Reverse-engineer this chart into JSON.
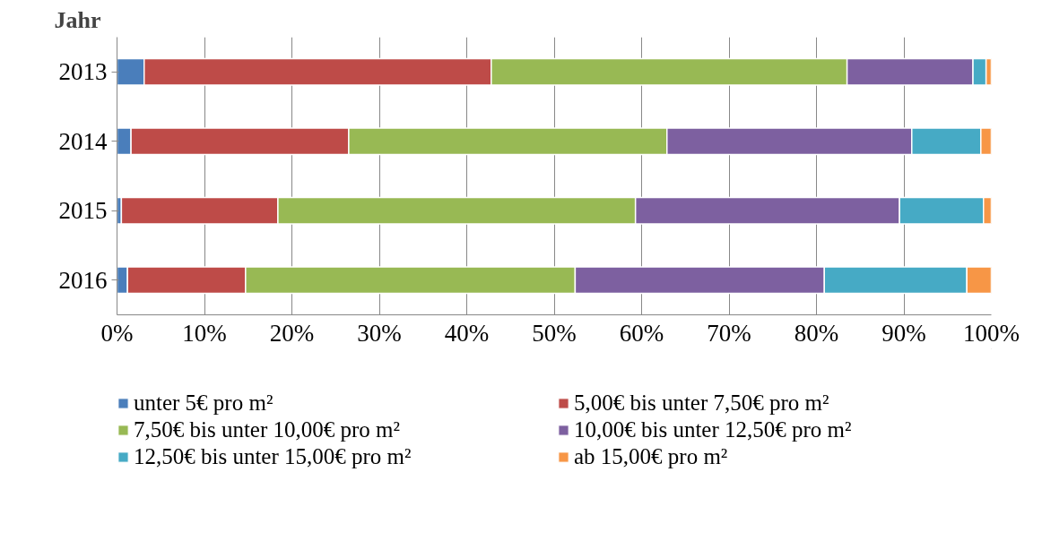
{
  "chart_data": {
    "type": "bar",
    "orientation": "horizontal",
    "stacked": true,
    "ylabel": "Jahr",
    "categories": [
      "2013",
      "2014",
      "2015",
      "2016"
    ],
    "xlim": [
      0,
      100
    ],
    "xticks": [
      {
        "value": 0,
        "label": "0%"
      },
      {
        "value": 10,
        "label": "10%"
      },
      {
        "value": 20,
        "label": "20%"
      },
      {
        "value": 30,
        "label": "30%"
      },
      {
        "value": 40,
        "label": "40%"
      },
      {
        "value": 50,
        "label": "50%"
      },
      {
        "value": 60,
        "label": "60%"
      },
      {
        "value": 70,
        "label": "70%"
      },
      {
        "value": 80,
        "label": "80%"
      },
      {
        "value": 90,
        "label": "90%"
      },
      {
        "value": 100,
        "label": "100%"
      }
    ],
    "grid": "x",
    "legend": "bottom",
    "series": [
      {
        "name": "unter 5€ pro m²",
        "color": "#4a7ebb",
        "values": [
          3.1,
          1.6,
          0.5,
          1.2
        ]
      },
      {
        "name": "5,00€ bis unter 7,50€ pro m²",
        "color": "#be4b48",
        "values": [
          39.7,
          24.9,
          17.9,
          13.5
        ]
      },
      {
        "name": "7,50€ bis unter 10,00€ pro m²",
        "color": "#98b954",
        "values": [
          40.7,
          36.4,
          40.9,
          37.7
        ]
      },
      {
        "name": "10,00€ bis unter 12,50€ pro m²",
        "color": "#7d60a0",
        "values": [
          14.4,
          28.0,
          30.2,
          28.5
        ]
      },
      {
        "name": "12,50€ bis unter 15,00€ pro m²",
        "color": "#46aac5",
        "values": [
          1.5,
          7.9,
          9.6,
          16.3
        ]
      },
      {
        "name": "ab 15,00€ pro m²",
        "color": "#f79646",
        "values": [
          0.6,
          1.2,
          0.9,
          2.8
        ]
      }
    ]
  }
}
